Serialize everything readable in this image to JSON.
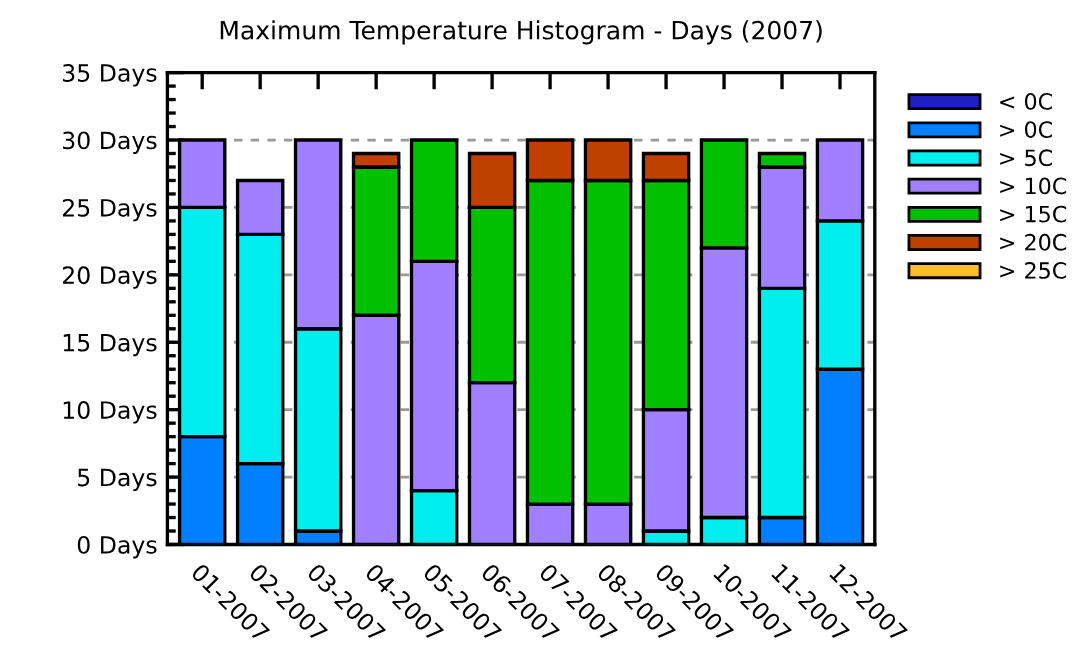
{
  "chart_data": {
    "type": "bar",
    "stacked": true,
    "title": "Maximum Temperature Histogram - Days (2007)",
    "categories": [
      "01-2007",
      "02-2007",
      "03-2007",
      "04-2007",
      "05-2007",
      "06-2007",
      "07-2007",
      "08-2007",
      "09-2007",
      "10-2007",
      "11-2007",
      "12-2007"
    ],
    "series": [
      {
        "name": "< 0C",
        "color": "#2020c0",
        "values": [
          0,
          0,
          0,
          0,
          0,
          0,
          0,
          0,
          0,
          0,
          0,
          0
        ]
      },
      {
        "name": "> 0C",
        "color": "#0080ff",
        "values": [
          8,
          6,
          1,
          0,
          0,
          0,
          0,
          0,
          0,
          0,
          2,
          13
        ]
      },
      {
        "name": "> 5C",
        "color": "#00eeee",
        "values": [
          17,
          17,
          15,
          0,
          4,
          0,
          0,
          0,
          1,
          2,
          17,
          11
        ]
      },
      {
        "name": "> 10C",
        "color": "#a080ff",
        "values": [
          5,
          4,
          14,
          17,
          17,
          12,
          3,
          3,
          9,
          20,
          9,
          6
        ]
      },
      {
        "name": "> 15C",
        "color": "#00c000",
        "values": [
          0,
          0,
          0,
          11,
          9,
          13,
          24,
          24,
          17,
          8,
          1,
          0
        ]
      },
      {
        "name": "> 20C",
        "color": "#c04000",
        "values": [
          0,
          0,
          0,
          1,
          0,
          4,
          3,
          3,
          2,
          0,
          0,
          0
        ]
      },
      {
        "name": "> 25C",
        "color": "#ffc020",
        "values": [
          0,
          0,
          0,
          0,
          0,
          0,
          0,
          0,
          0,
          0,
          0,
          0
        ]
      }
    ],
    "ylim": [
      0,
      35
    ],
    "yticks": [
      {
        "value": 0,
        "label": "0 Days"
      },
      {
        "value": 5,
        "label": "5 Days"
      },
      {
        "value": 10,
        "label": "10 Days"
      },
      {
        "value": 15,
        "label": "15 Days"
      },
      {
        "value": 20,
        "label": "20 Days"
      },
      {
        "value": 25,
        "label": "25 Days"
      },
      {
        "value": 30,
        "label": "30 Days"
      },
      {
        "value": 35,
        "label": "35 Days"
      }
    ],
    "grid": "y",
    "legend": "top right"
  }
}
